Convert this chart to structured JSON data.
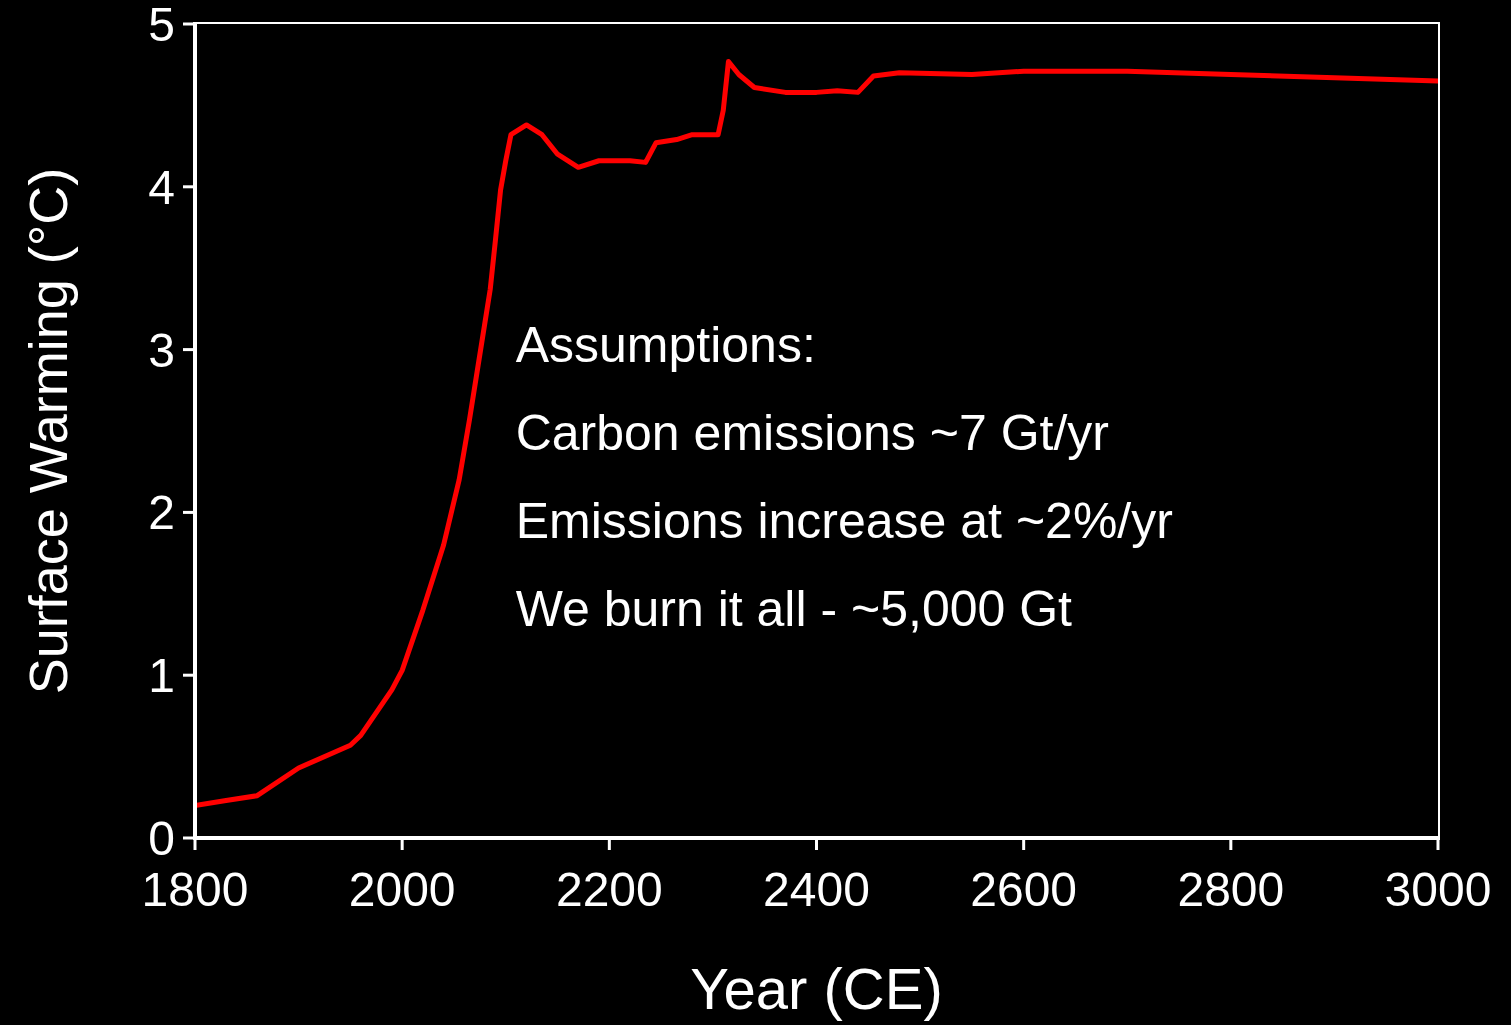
{
  "chart_data": {
    "type": "line",
    "xlabel": "Year (CE)",
    "ylabel": "Surface Warming (°C)",
    "annotations": [
      "Assumptions:",
      "Carbon emissions ~7 Gt/yr",
      "Emissions increase at ~2%/yr",
      "We burn it all - ~5,000 Gt"
    ],
    "x": [
      1800,
      1830,
      1860,
      1900,
      1950,
      1960,
      1975,
      1990,
      2000,
      2020,
      2040,
      2055,
      2065,
      2075,
      2085,
      2090,
      2095,
      2100,
      2105,
      2120,
      2135,
      2150,
      2170,
      2190,
      2220,
      2235,
      2245,
      2265,
      2280,
      2305,
      2310,
      2315,
      2325,
      2340,
      2370,
      2400,
      2420,
      2440,
      2455,
      2480,
      2550,
      2600,
      2700,
      2800,
      2900,
      3000
    ],
    "series": [
      {
        "color": "#ff0000",
        "values": [
          0.2,
          0.23,
          0.26,
          0.43,
          0.57,
          0.63,
          0.77,
          0.91,
          1.03,
          1.4,
          1.8,
          2.2,
          2.57,
          2.97,
          3.37,
          3.67,
          3.98,
          4.16,
          4.32,
          4.38,
          4.32,
          4.2,
          4.12,
          4.16,
          4.16,
          4.15,
          4.27,
          4.29,
          4.32,
          4.32,
          4.47,
          4.77,
          4.69,
          4.61,
          4.58,
          4.58,
          4.59,
          4.58,
          4.68,
          4.7,
          4.69,
          4.71,
          4.71,
          4.69,
          4.67,
          4.65
        ]
      }
    ],
    "xlim": [
      1800,
      3000
    ],
    "xticks": [
      1800,
      2000,
      2200,
      2400,
      2600,
      2800,
      3000
    ],
    "ylim": [
      0,
      5
    ],
    "yticks": [
      0,
      1,
      2,
      3,
      4,
      5
    ],
    "grid": false,
    "legend": false,
    "marker": "none",
    "line_style": "solid"
  }
}
